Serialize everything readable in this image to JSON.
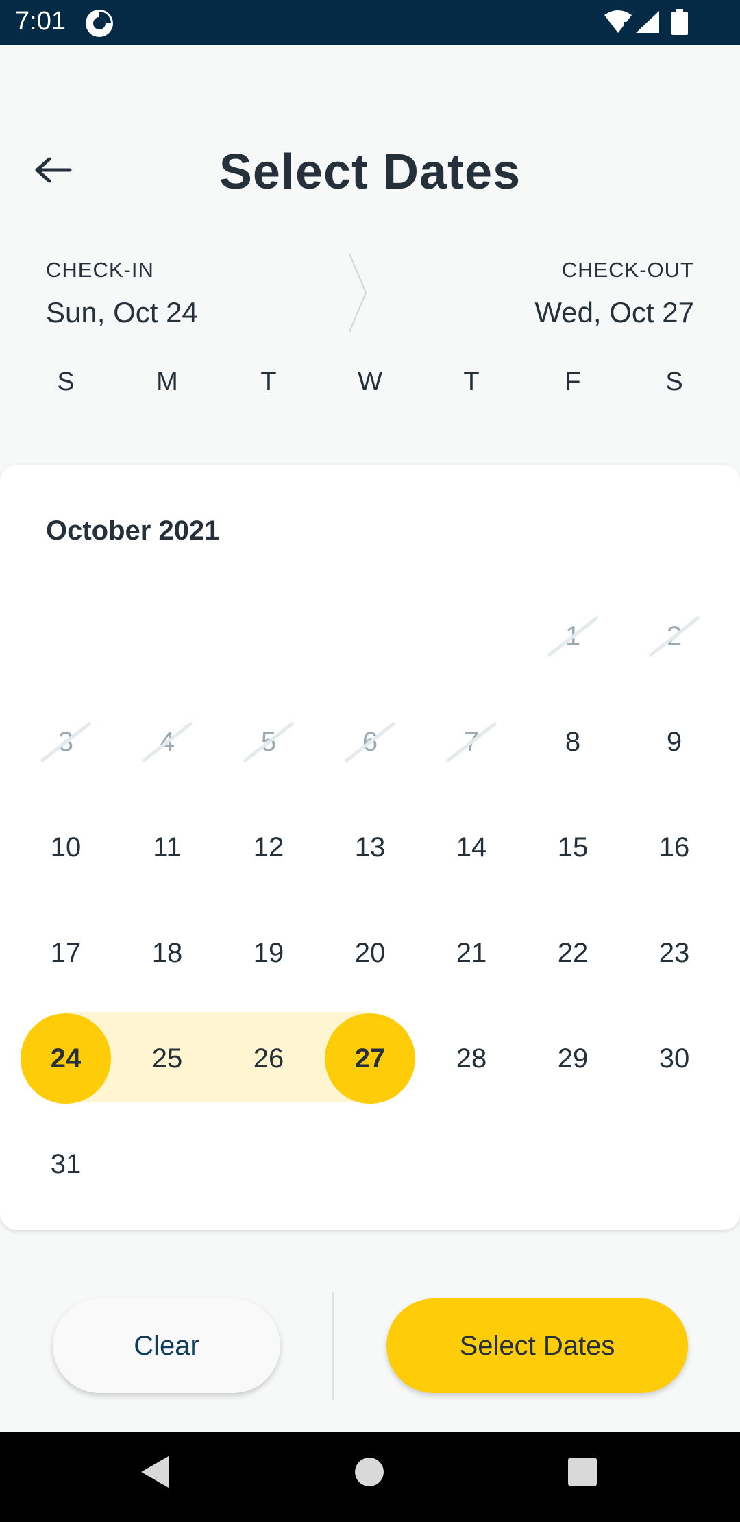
{
  "status_bar": {
    "time": "7:01",
    "icons": [
      "app-notification-icon",
      "wifi-icon",
      "signal-icon",
      "battery-icon"
    ]
  },
  "header": {
    "title": "Select Dates",
    "back_icon": "arrow-left-icon"
  },
  "range": {
    "checkin_label": "CHECK-IN",
    "checkin_value": "Sun, Oct 24",
    "checkout_label": "CHECK-OUT",
    "checkout_value": "Wed, Oct 27"
  },
  "weekdays": [
    "S",
    "M",
    "T",
    "W",
    "T",
    "F",
    "S"
  ],
  "calendar": {
    "month": "October 2021",
    "first_weekday_index": 5,
    "days": [
      "1",
      "2",
      "3",
      "4",
      "5",
      "6",
      "7",
      "8",
      "9",
      "10",
      "11",
      "12",
      "13",
      "14",
      "15",
      "16",
      "17",
      "18",
      "19",
      "20",
      "21",
      "22",
      "23",
      "24",
      "25",
      "26",
      "27",
      "28",
      "29",
      "30",
      "31"
    ],
    "disabled_days": [
      "1",
      "2",
      "3",
      "4",
      "5",
      "6",
      "7"
    ],
    "selected_start": "24",
    "selected_end": "27"
  },
  "actions": {
    "clear_label": "Clear",
    "select_label": "Select Dates"
  },
  "colors": {
    "accent": "#ffcc0a",
    "range_fill": "#fff6d1",
    "text": "#25303a",
    "status_bar": "#052a45"
  }
}
